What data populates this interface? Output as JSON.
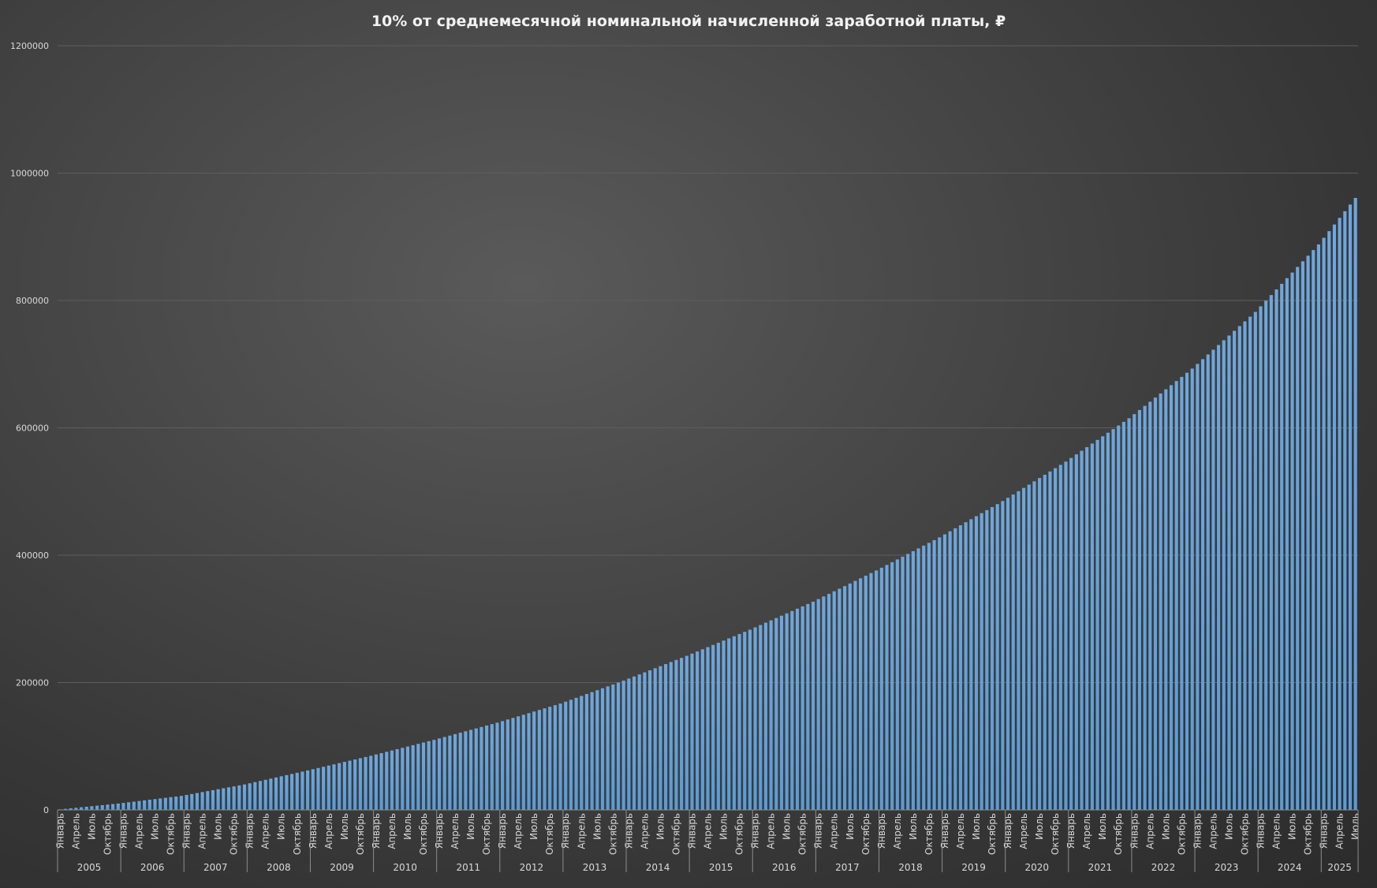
{
  "chart_data": {
    "type": "bar",
    "title": "10% от среднемесячной номинальной начисленной заработной платы, ₽",
    "xlabel": "",
    "ylabel": "",
    "ylim": [
      0,
      1200000
    ],
    "yticks": [
      "0",
      "200000",
      "400000",
      "600000",
      "800000",
      "1000000",
      "1200000"
    ],
    "grid": true,
    "legend": "none",
    "bar_color": "#5b9bd5",
    "month_tick_labels": [
      "Январь",
      "Апрель",
      "Июль",
      "Октябрь"
    ],
    "years": [
      {
        "year": "2005",
        "values": [
          833,
          1667,
          2500,
          3333,
          4167,
          5000,
          5833,
          6667,
          7500,
          8333,
          9167,
          10000
        ]
      },
      {
        "year": "2006",
        "values": [
          11000,
          12000,
          13000,
          14000,
          15000,
          16000,
          17000,
          18000,
          19000,
          20000,
          21000,
          22000
        ]
      },
      {
        "year": "2007",
        "values": [
          23500,
          25000,
          26500,
          28000,
          29500,
          31000,
          32500,
          34000,
          35500,
          37000,
          38500,
          40000
        ]
      },
      {
        "year": "2008",
        "values": [
          41833,
          43667,
          45500,
          47333,
          49167,
          51000,
          52833,
          54667,
          56500,
          58333,
          60167,
          62000
        ]
      },
      {
        "year": "2009",
        "values": [
          63917,
          65833,
          67750,
          69667,
          71583,
          73500,
          75417,
          77333,
          79250,
          81167,
          83083,
          85000
        ]
      },
      {
        "year": "2010",
        "values": [
          87083,
          89167,
          91250,
          93333,
          95417,
          97500,
          99583,
          101667,
          103750,
          105833,
          107917,
          110000
        ]
      },
      {
        "year": "2011",
        "values": [
          112250,
          114500,
          116750,
          119000,
          121250,
          123500,
          125750,
          128000,
          130250,
          132500,
          134750,
          137000
        ]
      },
      {
        "year": "2012",
        "values": [
          139500,
          142000,
          144500,
          147000,
          149500,
          152000,
          154500,
          157000,
          159500,
          162000,
          164500,
          167000
        ]
      },
      {
        "year": "2013",
        "values": [
          170000,
          173000,
          176000,
          179000,
          182000,
          185000,
          188000,
          191000,
          194000,
          197000,
          200000,
          203000
        ]
      },
      {
        "year": "2014",
        "values": [
          206250,
          209500,
          212750,
          216000,
          219250,
          222500,
          225750,
          229000,
          232250,
          235500,
          238750,
          242000
        ]
      },
      {
        "year": "2015",
        "values": [
          245417,
          248833,
          252250,
          255667,
          259083,
          262500,
          265917,
          269333,
          272750,
          276167,
          279583,
          283000
        ]
      },
      {
        "year": "2016",
        "values": [
          286667,
          290333,
          294000,
          297667,
          301333,
          305000,
          308667,
          312333,
          316000,
          319667,
          323333,
          327000
        ]
      },
      {
        "year": "2017",
        "values": [
          331083,
          335167,
          339250,
          343333,
          347417,
          351500,
          355583,
          359667,
          363750,
          367833,
          371917,
          376000
        ]
      },
      {
        "year": "2018",
        "values": [
          380333,
          384667,
          389000,
          393333,
          397667,
          402000,
          406333,
          410667,
          415000,
          419333,
          423667,
          428000
        ]
      },
      {
        "year": "2019",
        "values": [
          432750,
          437500,
          442250,
          447000,
          451750,
          456500,
          461250,
          466000,
          470750,
          475500,
          480250,
          485000
        ]
      },
      {
        "year": "2020",
        "values": [
          490167,
          495333,
          500500,
          505667,
          510833,
          516000,
          521167,
          526333,
          531500,
          536667,
          541833,
          547000
        ]
      },
      {
        "year": "2021",
        "values": [
          552667,
          558333,
          564000,
          569667,
          575333,
          581000,
          586667,
          592333,
          598000,
          603667,
          609333,
          615000
        ]
      },
      {
        "year": "2022",
        "values": [
          621500,
          628000,
          634500,
          641000,
          647500,
          654000,
          660500,
          667000,
          673500,
          680000,
          686500,
          693000
        ]
      },
      {
        "year": "2023",
        "values": [
          700417,
          707833,
          715250,
          722667,
          730083,
          737500,
          744917,
          752333,
          759750,
          767167,
          774583,
          782000
        ]
      },
      {
        "year": "2024",
        "values": [
          790833,
          799667,
          808500,
          817333,
          826167,
          835000,
          843833,
          852667,
          861500,
          870333,
          879167,
          888000
        ]
      },
      {
        "year": "2025",
        "values": [
          898429,
          908857,
          919286,
          929714,
          940143,
          950571,
          961000
        ]
      }
    ]
  }
}
